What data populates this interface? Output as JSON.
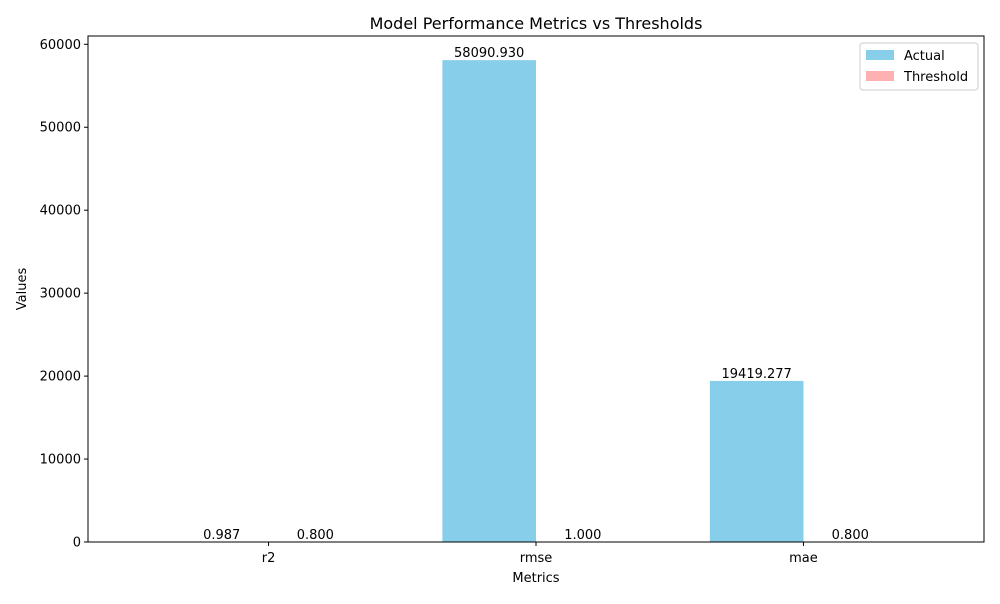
{
  "chart_data": {
    "type": "bar",
    "title": "Model Performance Metrics vs Thresholds",
    "xlabel": "Metrics",
    "ylabel": "Values",
    "categories": [
      "r2",
      "rmse",
      "mae"
    ],
    "series": [
      {
        "name": "Actual",
        "values": [
          0.987,
          58090.93,
          19419.277
        ],
        "labels": [
          "0.987",
          "58090.930",
          "19419.277"
        ],
        "color": "#87ceeb"
      },
      {
        "name": "Threshold",
        "values": [
          0.8,
          1.0,
          0.8
        ],
        "labels": [
          "0.800",
          "1.000",
          "0.800"
        ],
        "color": "#ffb0b0"
      }
    ],
    "ylim": [
      0,
      61000
    ],
    "yticks": [
      0,
      10000,
      20000,
      30000,
      40000,
      50000,
      60000
    ],
    "ytick_labels": [
      "0",
      "10000",
      "20000",
      "30000",
      "40000",
      "50000",
      "60000"
    ],
    "grid": false,
    "legend_position": "top-right"
  }
}
